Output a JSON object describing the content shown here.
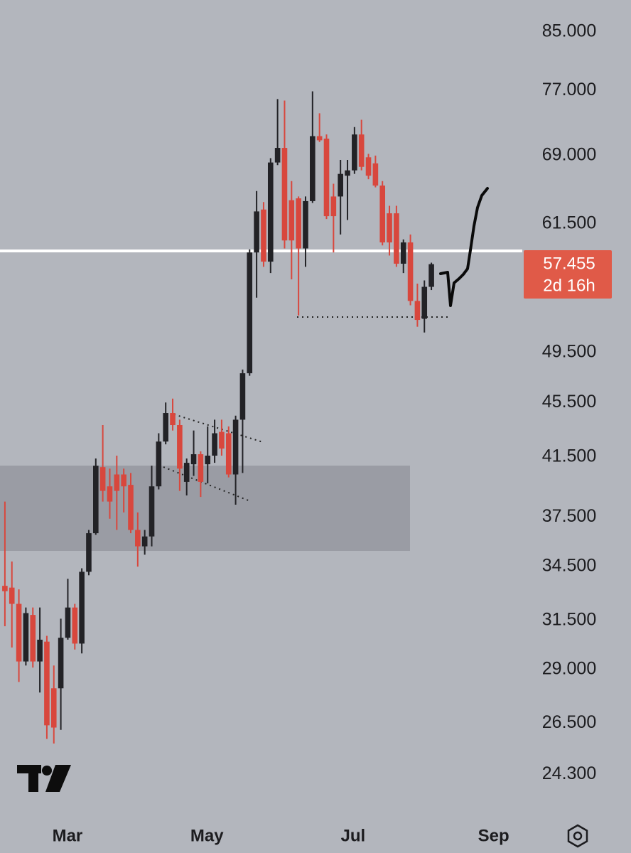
{
  "chart_data": {
    "type": "candlestick",
    "log_scale": true,
    "up_color": "#222226",
    "down_color": "#d8473d",
    "open": [
      33.4,
      33.3,
      32.4,
      29.4,
      31.8,
      29.4,
      30.4,
      28.1,
      28.1,
      30.6,
      32.2,
      30.3,
      34.2,
      36.5,
      40.8,
      39.5,
      40.3,
      40.3,
      39.6,
      36.7,
      35.7,
      36.3,
      39.5,
      42.6,
      44.7,
      43.8,
      39.8,
      41.0,
      41.7,
      41.0,
      41.6,
      43.3,
      43.2,
      40.3,
      44.2,
      47.8,
      58.6,
      63.0,
      57.7,
      68.2,
      69.9,
      64.0,
      64.2,
      59.0,
      63.9,
      71.3,
      71.0,
      64.4,
      64.4,
      66.7,
      67.3,
      71.5,
      68.8,
      68.1,
      65.6,
      62.6,
      62.6,
      57.5,
      59.6,
      54.0,
      52.4,
      55.3
    ],
    "high": [
      38.5,
      34.8,
      33.2,
      32.2,
      32.2,
      32.2,
      30.7,
      29.2,
      31.6,
      33.8,
      32.4,
      34.4,
      36.7,
      41.4,
      43.8,
      40.7,
      41.6,
      40.7,
      40.4,
      37.8,
      36.7,
      40.9,
      43.2,
      45.5,
      45.8,
      44.2,
      41.4,
      43.4,
      41.9,
      43.7,
      44.2,
      44.2,
      43.7,
      44.5,
      48.1,
      58.9,
      65.0,
      63.8,
      68.7,
      75.9,
      75.7,
      66.1,
      64.4,
      64.4,
      76.9,
      74.1,
      71.5,
      65.8,
      68.5,
      68.5,
      72.4,
      73.3,
      69.2,
      69.0,
      66.1,
      63.4,
      63.4,
      59.9,
      60.4,
      55.6,
      55.9,
      57.6
    ],
    "low": [
      31.2,
      30.1,
      28.4,
      29.2,
      29.1,
      27.9,
      25.8,
      25.6,
      26.2,
      30.5,
      30.0,
      29.8,
      34.0,
      36.4,
      38.5,
      37.4,
      36.7,
      37.8,
      36.5,
      34.5,
      35.2,
      35.7,
      39.3,
      42.4,
      43.4,
      39.2,
      38.9,
      40.2,
      38.8,
      39.7,
      41.1,
      41.6,
      40.1,
      38.3,
      40.4,
      47.6,
      54.3,
      57.2,
      56.6,
      67.9,
      59.0,
      56.0,
      52.7,
      57.2,
      63.7,
      70.6,
      62.0,
      58.6,
      60.4,
      61.9,
      66.9,
      67.3,
      66.3,
      65.4,
      59.3,
      58.3,
      57.2,
      56.6,
      53.6,
      51.7,
      51.2,
      55.0
    ],
    "close": [
      33.1,
      32.4,
      29.4,
      31.9,
      29.4,
      30.5,
      26.4,
      26.3,
      30.6,
      32.2,
      30.3,
      34.2,
      36.5,
      40.9,
      39.2,
      38.5,
      39.2,
      39.5,
      36.7,
      35.7,
      36.3,
      39.5,
      42.6,
      44.7,
      43.8,
      40.7,
      41.1,
      41.7,
      39.8,
      41.6,
      43.2,
      42.1,
      40.3,
      44.2,
      47.8,
      58.6,
      62.8,
      57.7,
      68.2,
      69.9,
      59.8,
      59.8,
      59.0,
      63.9,
      71.3,
      70.8,
      62.3,
      62.3,
      66.9,
      67.3,
      71.5,
      67.7,
      66.7,
      65.6,
      59.6,
      59.6,
      57.5,
      59.6,
      54.0,
      52.3,
      55.3,
      57.455
    ],
    "ylim": [
      22.6,
      89.7
    ],
    "yticks": [
      {
        "value": 85,
        "label": "85.000"
      },
      {
        "value": 77,
        "label": "77.000"
      },
      {
        "value": 69,
        "label": "69.000"
      },
      {
        "value": 61.5,
        "label": "61.500"
      },
      {
        "value": 49.5,
        "label": "49.500"
      },
      {
        "value": 45.5,
        "label": "45.500"
      },
      {
        "value": 41.5,
        "label": "41.500"
      },
      {
        "value": 37.5,
        "label": "37.500"
      },
      {
        "value": 34.5,
        "label": "34.500"
      },
      {
        "value": 31.5,
        "label": "31.500"
      },
      {
        "value": 29,
        "label": "29.000"
      },
      {
        "value": 26.5,
        "label": "26.500"
      },
      {
        "value": 24.3,
        "label": "24.300"
      }
    ],
    "xlim": [
      -0.7,
      74.0
    ],
    "xticks": [
      {
        "value": 8.95,
        "label": "Mar"
      },
      {
        "value": 28.9,
        "label": "May"
      },
      {
        "value": 49.8,
        "label": "Jul"
      },
      {
        "value": 69.9,
        "label": "Sep"
      }
    ],
    "last_price": 57.455,
    "last_price_color": "#e05a48",
    "countdown": "2d 16h"
  }
}
